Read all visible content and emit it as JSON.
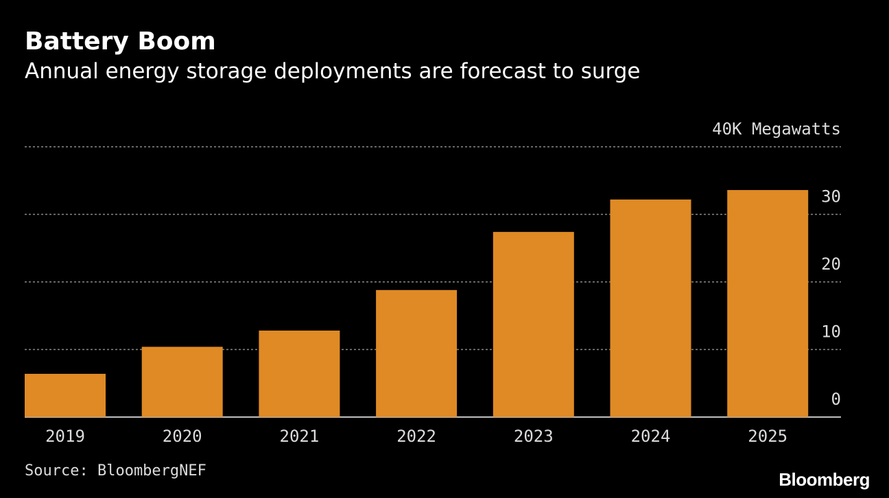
{
  "title": "Battery Boom",
  "subtitle": "Annual energy storage deployments are forecast to surge",
  "source": "Source: BloombergNEF",
  "brand": "Bloomberg",
  "colors": {
    "background": "#000000",
    "bar": "#df8a24",
    "grid": "#8a8a8a",
    "text": "#dcdcdc"
  },
  "chart_data": {
    "type": "bar",
    "categories": [
      "2019",
      "2020",
      "2021",
      "2022",
      "2023",
      "2024",
      "2025"
    ],
    "values": [
      6.4,
      10.4,
      12.8,
      18.8,
      27.4,
      32.2,
      33.6
    ],
    "ylim": [
      0,
      40
    ],
    "y_ticks": [
      "0",
      "10",
      "20",
      "30"
    ],
    "y_top_label": "40K Megawatts",
    "grid": true,
    "y_axis_position": "right"
  }
}
